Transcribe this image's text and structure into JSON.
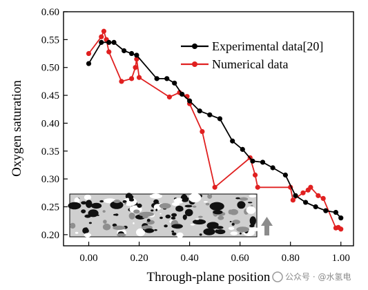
{
  "chart_data": {
    "type": "line",
    "title": "",
    "xlabel": "Through-plane position",
    "ylabel": "Oxygen saturation",
    "xlim": [
      -0.1,
      1.05
    ],
    "ylim": [
      0.18,
      0.6
    ],
    "xticks": [
      "0.00",
      "0.20",
      "0.40",
      "0.60",
      "0.80",
      "1.00"
    ],
    "yticks": [
      "0.20",
      "0.25",
      "0.30",
      "0.35",
      "0.40",
      "0.45",
      "0.50",
      "0.55",
      "0.60"
    ],
    "legend_position": "top-right",
    "grid": false,
    "series": [
      {
        "name": "Experimental data[20]",
        "color": "#000000",
        "marker": "circle",
        "x": [
          0.0,
          0.05,
          0.08,
          0.1,
          0.14,
          0.17,
          0.19,
          0.27,
          0.31,
          0.34,
          0.37,
          0.4,
          0.44,
          0.48,
          0.52,
          0.57,
          0.61,
          0.65,
          0.69,
          0.73,
          0.78,
          0.82,
          0.86,
          0.9,
          0.94,
          0.98,
          1.0
        ],
        "y": [
          0.507,
          0.545,
          0.545,
          0.545,
          0.53,
          0.525,
          0.522,
          0.48,
          0.48,
          0.472,
          0.452,
          0.44,
          0.422,
          0.415,
          0.408,
          0.368,
          0.353,
          0.332,
          0.33,
          0.32,
          0.307,
          0.27,
          0.258,
          0.25,
          0.243,
          0.24,
          0.23
        ]
      },
      {
        "name": "Numerical data",
        "color": "#e02020",
        "marker": "circle",
        "x": [
          0.0,
          0.05,
          0.06,
          0.07,
          0.08,
          0.13,
          0.17,
          0.185,
          0.19,
          0.2,
          0.32,
          0.36,
          0.39,
          0.4,
          0.45,
          0.5,
          0.64,
          0.66,
          0.67,
          0.8,
          0.81,
          0.85,
          0.87,
          0.88,
          0.91,
          0.93,
          0.98,
          0.99,
          1.0
        ],
        "y": [
          0.525,
          0.555,
          0.565,
          0.55,
          0.528,
          0.475,
          0.48,
          0.5,
          0.515,
          0.482,
          0.447,
          0.455,
          0.448,
          0.435,
          0.385,
          0.285,
          0.338,
          0.307,
          0.285,
          0.285,
          0.262,
          0.275,
          0.28,
          0.285,
          0.27,
          0.265,
          0.212,
          0.213,
          0.21
        ]
      }
    ]
  },
  "watermark": {
    "text": "公众号 · @水氢电"
  }
}
